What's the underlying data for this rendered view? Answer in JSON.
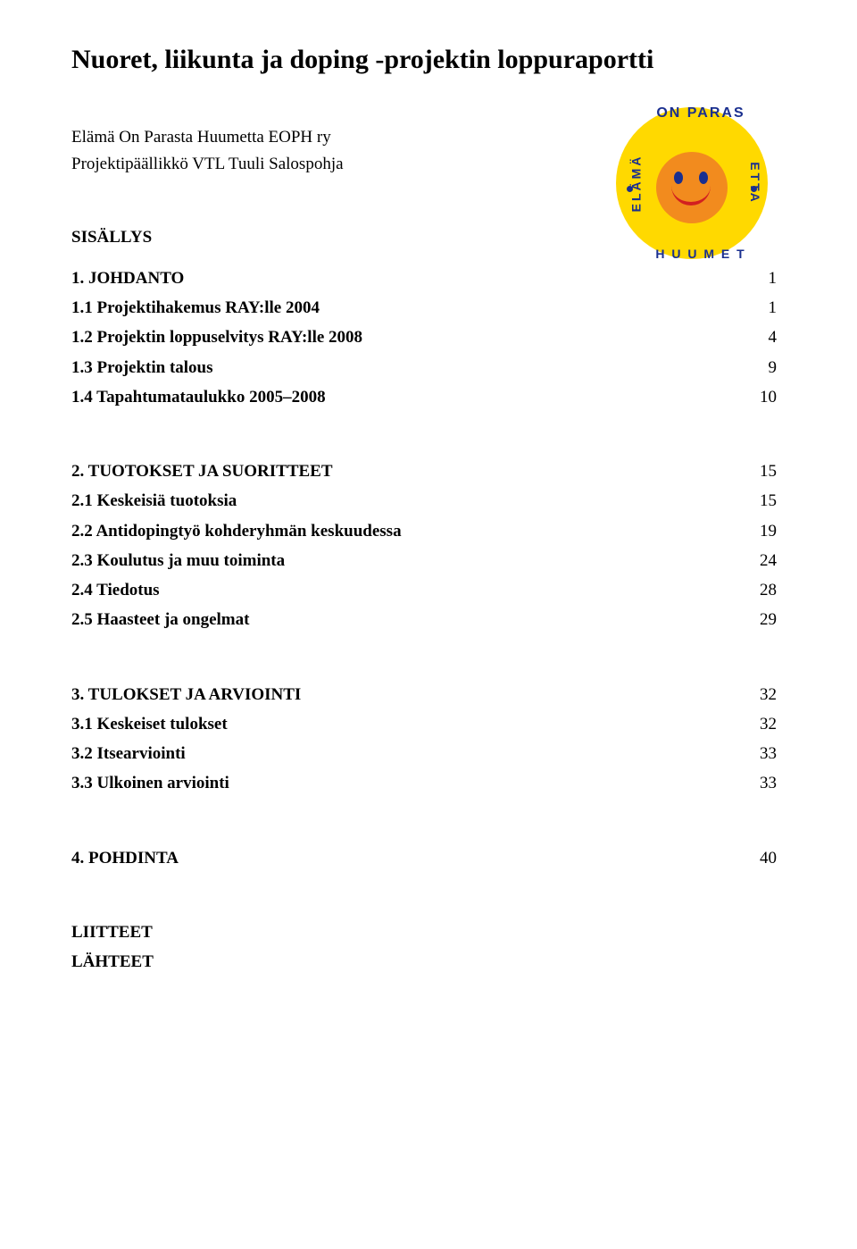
{
  "title": "Nuoret, liikunta ja doping -projektin loppuraportti",
  "org": "Elämä On Parasta Huumetta EOPH ry",
  "author": "Projektipäällikkö VTL Tuuli Salospohja",
  "contents_heading": "SISÄLLYS",
  "logo": {
    "bg_color": "#ffd900",
    "text_color": "#1a2f8f",
    "smiley_bg": "#f28b1e",
    "eye_color": "#1a2f8f",
    "mouth_color": "#d22020",
    "upper_text": "ON PARAS",
    "lower_text": "H U U M E T",
    "left_text": "ELÄMÄ",
    "right_text": "ETTA",
    "dot_color": "#1a2f8f"
  },
  "sections": [
    {
      "items": [
        {
          "label": "1. JOHDANTO",
          "page": "1"
        },
        {
          "label": "1.1 Projektihakemus RAY:lle 2004",
          "page": "1"
        },
        {
          "label": "1.2 Projektin loppuselvitys RAY:lle 2008",
          "page": "4"
        },
        {
          "label": "1.3 Projektin talous",
          "page": "9"
        },
        {
          "label": "1.4 Tapahtumataulukko 2005–2008",
          "page": "10"
        }
      ]
    },
    {
      "items": [
        {
          "label": "2. TUOTOKSET JA SUORITTEET",
          "page": "15"
        },
        {
          "label": "2.1 Keskeisiä tuotoksia",
          "page": "15"
        },
        {
          "label": "2.2 Antidopingtyö kohderyhmän keskuudessa",
          "page": "19"
        },
        {
          "label": "2.3 Koulutus ja muu toiminta",
          "page": "24"
        },
        {
          "label": "2.4 Tiedotus",
          "page": "28"
        },
        {
          "label": "2.5 Haasteet ja ongelmat",
          "page": "29"
        }
      ]
    },
    {
      "items": [
        {
          "label": "3. TULOKSET JA ARVIOINTI",
          "page": "32"
        },
        {
          "label": "3.1 Keskeiset tulokset",
          "page": "32"
        },
        {
          "label": "3.2 Itsearviointi",
          "page": "33"
        },
        {
          "label": "3.3 Ulkoinen arviointi",
          "page": "33"
        }
      ]
    },
    {
      "items": [
        {
          "label": "4. POHDINTA",
          "page": "40"
        }
      ]
    }
  ],
  "endings": [
    "LIITTEET",
    "LÄHTEET"
  ]
}
